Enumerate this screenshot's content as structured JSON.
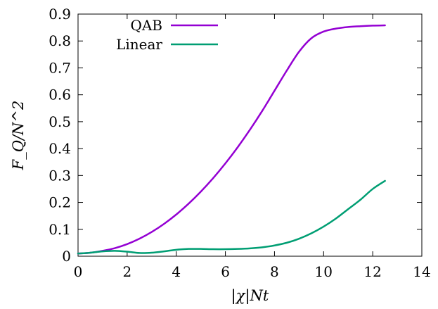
{
  "chart_data": {
    "type": "line",
    "xlabel": "|χ|Nt",
    "ylabel": "F_Q/N^2",
    "xlim": [
      0,
      14
    ],
    "ylim": [
      0,
      0.9
    ],
    "xticks": [
      "0",
      "2",
      "4",
      "6",
      "8",
      "10",
      "12",
      "14"
    ],
    "yticks": [
      "0",
      "0.1",
      "0.2",
      "0.3",
      "0.4",
      "0.5",
      "0.6",
      "0.7",
      "0.8",
      "0.9"
    ],
    "grid": false,
    "legend_position": "top-left",
    "series": [
      {
        "name": "QAB",
        "color": "#9400d3",
        "x": [
          0,
          0.5,
          1,
          1.5,
          2,
          2.5,
          3,
          3.5,
          4,
          4.5,
          5,
          5.5,
          6,
          6.5,
          7,
          7.5,
          8,
          8.5,
          9,
          9.5,
          10,
          10.5,
          11,
          11.5,
          12,
          12.5
        ],
        "y": [
          0.01,
          0.013,
          0.02,
          0.03,
          0.045,
          0.065,
          0.09,
          0.12,
          0.155,
          0.195,
          0.24,
          0.29,
          0.345,
          0.405,
          0.47,
          0.54,
          0.615,
          0.69,
          0.76,
          0.81,
          0.835,
          0.846,
          0.852,
          0.855,
          0.857,
          0.858
        ]
      },
      {
        "name": "Linear",
        "color": "#009e73",
        "x": [
          0,
          0.5,
          1,
          1.5,
          2,
          2.5,
          3,
          3.5,
          4,
          4.5,
          5,
          5.5,
          6,
          6.5,
          7,
          7.5,
          8,
          8.5,
          9,
          9.5,
          10,
          10.5,
          11,
          11.5,
          12,
          12.5
        ],
        "y": [
          0.01,
          0.013,
          0.018,
          0.02,
          0.017,
          0.012,
          0.013,
          0.018,
          0.024,
          0.027,
          0.027,
          0.026,
          0.026,
          0.027,
          0.029,
          0.033,
          0.04,
          0.05,
          0.065,
          0.085,
          0.11,
          0.14,
          0.175,
          0.21,
          0.25,
          0.28
        ]
      }
    ]
  }
}
